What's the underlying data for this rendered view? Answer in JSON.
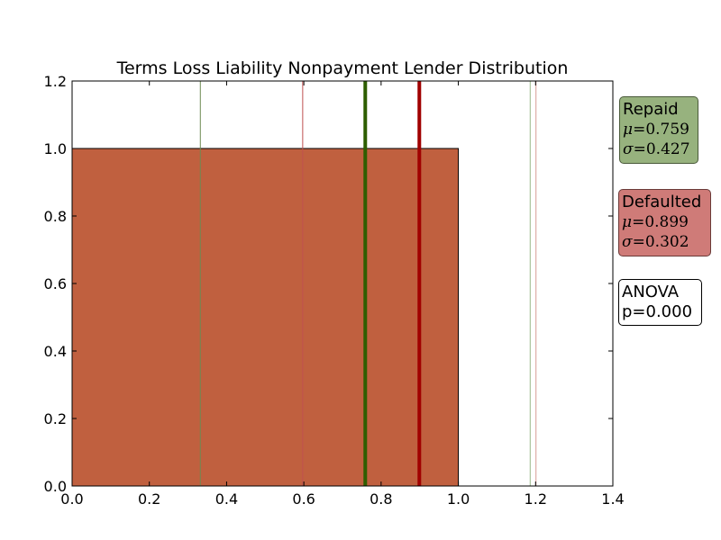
{
  "chart_data": {
    "type": "bar",
    "title": "Terms Loss Liability Nonpayment Lender Distribution",
    "xlabel": "",
    "ylabel": "",
    "xlim": [
      0.0,
      1.4
    ],
    "ylim": [
      0.0,
      1.2
    ],
    "xticks": [
      "0.0",
      "0.2",
      "0.4",
      "0.6",
      "0.8",
      "1.0",
      "1.2",
      "1.4"
    ],
    "yticks": [
      "0.0",
      "0.2",
      "0.4",
      "0.6",
      "0.8",
      "1.0",
      "1.2"
    ],
    "bars": [
      {
        "x_start": 0.0,
        "x_end": 1.0,
        "value": 1.0,
        "color": "#c0603f"
      }
    ],
    "vlines": [
      {
        "x": 0.332,
        "color": "#6e8a52",
        "style": "thin",
        "series": "Repaid"
      },
      {
        "x": 0.759,
        "color": "#2e5e00",
        "style": "mean",
        "series": "Repaid"
      },
      {
        "x": 1.186,
        "color": "#9ab888",
        "style": "thin",
        "series": "Repaid"
      },
      {
        "x": 0.597,
        "color": "#c05050",
        "style": "thin",
        "series": "Defaulted"
      },
      {
        "x": 0.899,
        "color": "#a00000",
        "style": "mean",
        "series": "Defaulted"
      },
      {
        "x": 1.201,
        "color": "#d89a95",
        "style": "thin",
        "series": "Defaulted"
      }
    ],
    "series": [
      {
        "name": "Repaid",
        "mu": "0.759",
        "sigma": "0.427",
        "color": "#97b27e"
      },
      {
        "name": "Defaulted",
        "mu": "0.899",
        "sigma": "0.302",
        "color": "#cf7b78"
      }
    ],
    "annotations": {
      "anova_label": "ANOVA",
      "anova_p": "p=0.000"
    },
    "grid": false,
    "legend_placement": "right-outside"
  },
  "labels": {
    "mu_symbol": "μ",
    "sigma_symbol": "σ",
    "equals": "="
  }
}
